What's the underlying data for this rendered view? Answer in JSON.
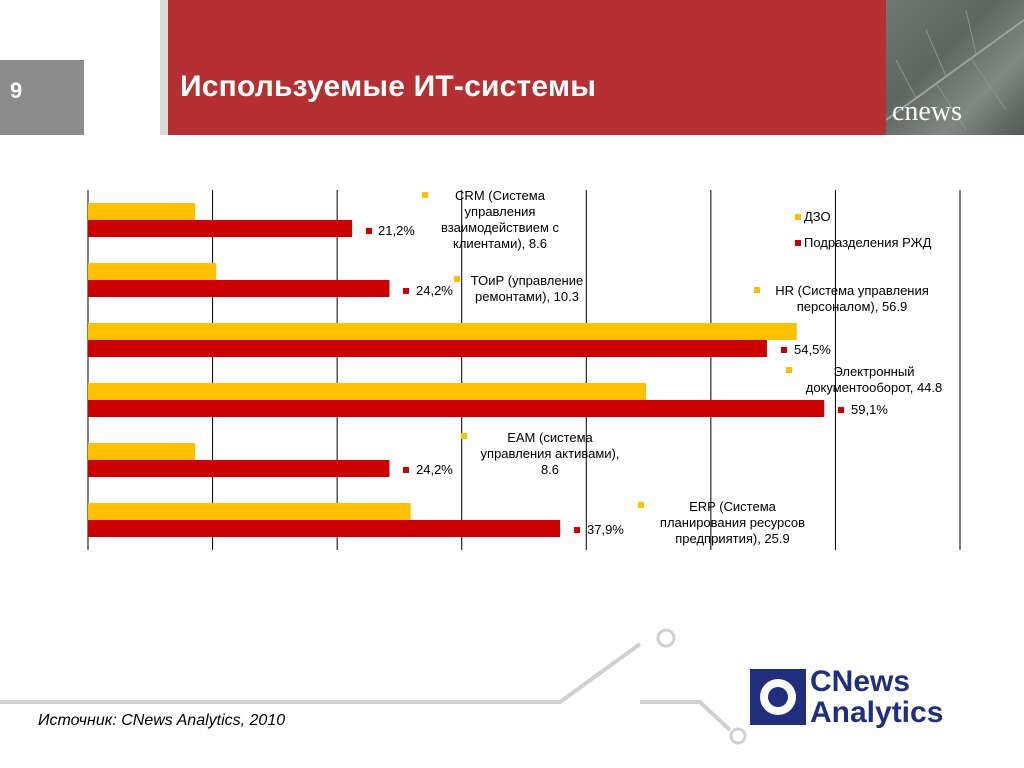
{
  "header": {
    "page_number": "9",
    "title": "Используемые ИТ-системы",
    "brand_small": "cnews"
  },
  "legend": [
    {
      "label": "ДЗО",
      "color": "#ffc000"
    },
    {
      "label": "Подразделения РЖД",
      "color": "#cc0000"
    }
  ],
  "chart_data": {
    "type": "bar",
    "orientation": "horizontal",
    "xlim": [
      0,
      70
    ],
    "grid": true,
    "categories": [
      "CRM (Система управления взаимодействием с клиентами)",
      "ТОиР (управление ремонтами)",
      "HR (Система управления персоналом)",
      "Электронный документооборот",
      "ЕАМ (система управления активами)",
      "ERP (Система планирования ресурсов предприятия)"
    ],
    "series": [
      {
        "name": "ДЗО",
        "color": "#ffc000",
        "values": [
          8.6,
          10.3,
          56.9,
          44.8,
          8.6,
          25.9
        ],
        "labels": [
          "CRM (Система управления взаимодействием с клиентами), 8.6",
          "ТОиР (управление ремонтами), 10.3",
          "HR (Система управления персоналом), 56.9",
          "Электронный документооборот, 44.8",
          "ЕАМ (система управления активами), 8.6",
          "ERP (Система планирования ресурсов предприятия), 25.9"
        ]
      },
      {
        "name": "Подразделения РЖД",
        "color": "#cc0000",
        "values": [
          21.2,
          24.2,
          54.5,
          59.1,
          24.2,
          37.9
        ],
        "labels": [
          "21,2%",
          "24,2%",
          "54,5%",
          "59,1%",
          "24,2%",
          "37,9%"
        ]
      }
    ]
  },
  "footer": {
    "source": "Источник: CNews Analytics, 2010",
    "logo_line1": "CNews",
    "logo_line2": "Analytics"
  }
}
